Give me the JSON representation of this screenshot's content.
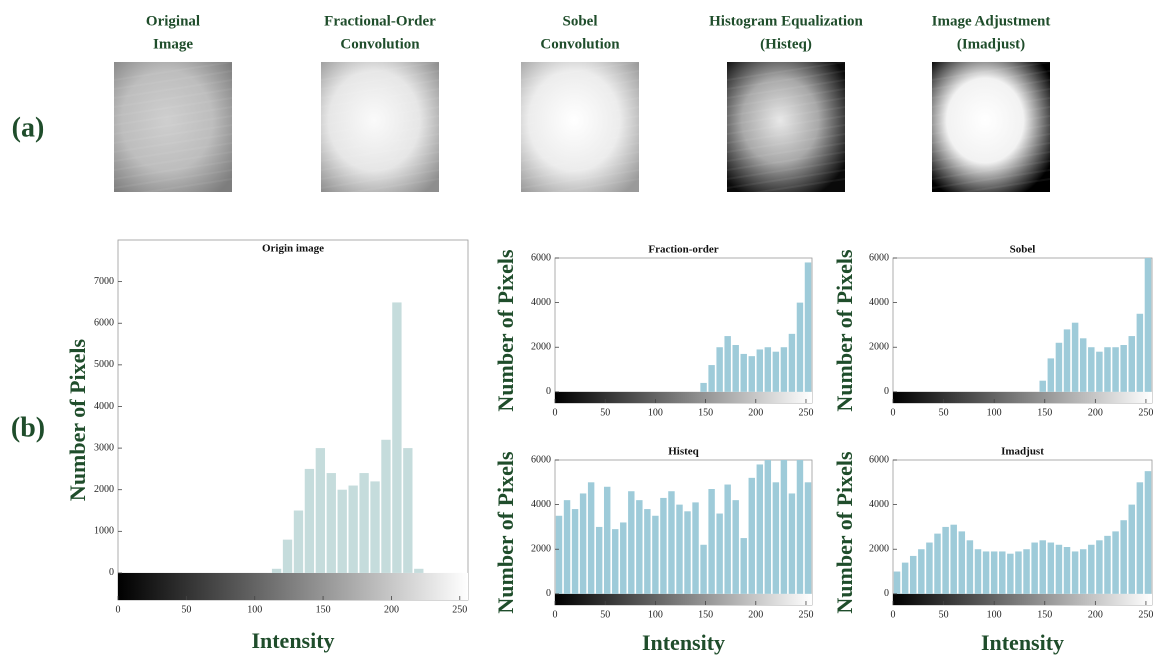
{
  "panel_a": {
    "label": "(a)",
    "images": [
      {
        "title": [
          "Original",
          "Image"
        ]
      },
      {
        "title": [
          "Fractional-Order",
          "Convolution"
        ]
      },
      {
        "title": [
          "Sobel",
          "Convolution"
        ]
      },
      {
        "title": [
          "Histogram Equalization",
          "(Histeq)"
        ]
      },
      {
        "title": [
          "Image Adjustment",
          "(Imadjust)"
        ]
      }
    ]
  },
  "panel_b": {
    "label": "(b)"
  },
  "chart_data": [
    {
      "type": "histogram",
      "title": "Origin image",
      "xlabel": "Intensity",
      "ylabel": "Number of Pixels",
      "color": "#c5dcdc",
      "bins": [
        0,
        8,
        16,
        24,
        32,
        40,
        48,
        56,
        64,
        72,
        80,
        88,
        96,
        104,
        112,
        120,
        128,
        136,
        144,
        152,
        160,
        168,
        176,
        184,
        192,
        200,
        208,
        216,
        224,
        232,
        240,
        248,
        256
      ],
      "values": [
        0,
        0,
        0,
        0,
        0,
        0,
        0,
        0,
        0,
        0,
        0,
        0,
        0,
        0,
        100,
        800,
        1500,
        2500,
        3000,
        2400,
        2000,
        2100,
        2400,
        2200,
        3200,
        6500,
        3000,
        100,
        0,
        0,
        0,
        0
      ],
      "xlim": [
        0,
        256
      ],
      "xticks": [
        0,
        50,
        100,
        150,
        200,
        250
      ],
      "ylim": [
        -650,
        8000
      ],
      "yticks": [
        0,
        1000,
        2000,
        3000,
        4000,
        5000,
        6000,
        7000
      ]
    },
    {
      "type": "histogram",
      "title": "Fraction-order",
      "ylabel": "Number of Pixels",
      "color": "#9ecbd9",
      "bins": [
        0,
        8,
        16,
        24,
        32,
        40,
        48,
        56,
        64,
        72,
        80,
        88,
        96,
        104,
        112,
        120,
        128,
        136,
        144,
        152,
        160,
        168,
        176,
        184,
        192,
        200,
        208,
        216,
        224,
        232,
        240,
        248,
        256
      ],
      "values": [
        0,
        0,
        0,
        0,
        0,
        0,
        0,
        0,
        0,
        0,
        0,
        0,
        0,
        0,
        0,
        0,
        0,
        0,
        400,
        1200,
        2000,
        2500,
        2100,
        1700,
        1600,
        1900,
        2000,
        1800,
        2000,
        2600,
        4000,
        5800
      ],
      "xlim": [
        0,
        256
      ],
      "xticks": [
        0,
        50,
        100,
        150,
        200,
        250
      ],
      "ylim": [
        -500,
        6000
      ],
      "yticks": [
        0,
        2000,
        4000,
        6000
      ]
    },
    {
      "type": "histogram",
      "title": "Sobel",
      "ylabel": "Number of Pixels",
      "color": "#9ecbd9",
      "bins": [
        0,
        8,
        16,
        24,
        32,
        40,
        48,
        56,
        64,
        72,
        80,
        88,
        96,
        104,
        112,
        120,
        128,
        136,
        144,
        152,
        160,
        168,
        176,
        184,
        192,
        200,
        208,
        216,
        224,
        232,
        240,
        248,
        256
      ],
      "values": [
        0,
        0,
        0,
        0,
        0,
        0,
        0,
        0,
        0,
        0,
        0,
        0,
        0,
        0,
        0,
        0,
        0,
        0,
        500,
        1500,
        2200,
        2800,
        3100,
        2400,
        2000,
        1800,
        2000,
        2000,
        2100,
        2500,
        3500,
        6000
      ],
      "xlim": [
        0,
        256
      ],
      "xticks": [
        0,
        50,
        100,
        150,
        200,
        250
      ],
      "ylim": [
        -500,
        6000
      ],
      "yticks": [
        0,
        2000,
        4000,
        6000
      ]
    },
    {
      "type": "histogram",
      "title": "Histeq",
      "xlabel": "Intensity",
      "ylabel": "Number of Pixels",
      "color": "#9ecbd9",
      "bins": [
        0,
        8,
        16,
        24,
        32,
        40,
        48,
        56,
        64,
        72,
        80,
        88,
        96,
        104,
        112,
        120,
        128,
        136,
        144,
        152,
        160,
        168,
        176,
        184,
        192,
        200,
        208,
        216,
        224,
        232,
        240,
        248,
        256
      ],
      "values": [
        3500,
        4200,
        3800,
        4500,
        5000,
        3000,
        4800,
        2900,
        3200,
        4600,
        4200,
        3800,
        3500,
        4300,
        4600,
        4000,
        3700,
        4100,
        2200,
        4700,
        3600,
        4900,
        4200,
        2500,
        5200,
        5800,
        6000,
        5000,
        6000,
        4500,
        6000,
        5000
      ],
      "xlim": [
        0,
        256
      ],
      "xticks": [
        0,
        50,
        100,
        150,
        200,
        250
      ],
      "ylim": [
        -500,
        6000
      ],
      "yticks": [
        0,
        2000,
        4000,
        6000
      ]
    },
    {
      "type": "histogram",
      "title": "Imadjust",
      "xlabel": "Intensity",
      "ylabel": "Number of Pixels",
      "color": "#9ecbd9",
      "bins": [
        0,
        8,
        16,
        24,
        32,
        40,
        48,
        56,
        64,
        72,
        80,
        88,
        96,
        104,
        112,
        120,
        128,
        136,
        144,
        152,
        160,
        168,
        176,
        184,
        192,
        200,
        208,
        216,
        224,
        232,
        240,
        248,
        256
      ],
      "values": [
        1000,
        1400,
        1700,
        2000,
        2300,
        2700,
        3000,
        3100,
        2800,
        2400,
        2000,
        1900,
        1900,
        1900,
        1800,
        1900,
        2000,
        2300,
        2400,
        2300,
        2200,
        2100,
        1900,
        2000,
        2200,
        2400,
        2600,
        2800,
        3300,
        4000,
        5000,
        5500
      ],
      "xlim": [
        0,
        256
      ],
      "xticks": [
        0,
        50,
        100,
        150,
        200,
        250
      ],
      "ylim": [
        -500,
        6000
      ],
      "yticks": [
        0,
        2000,
        4000,
        6000
      ]
    }
  ]
}
